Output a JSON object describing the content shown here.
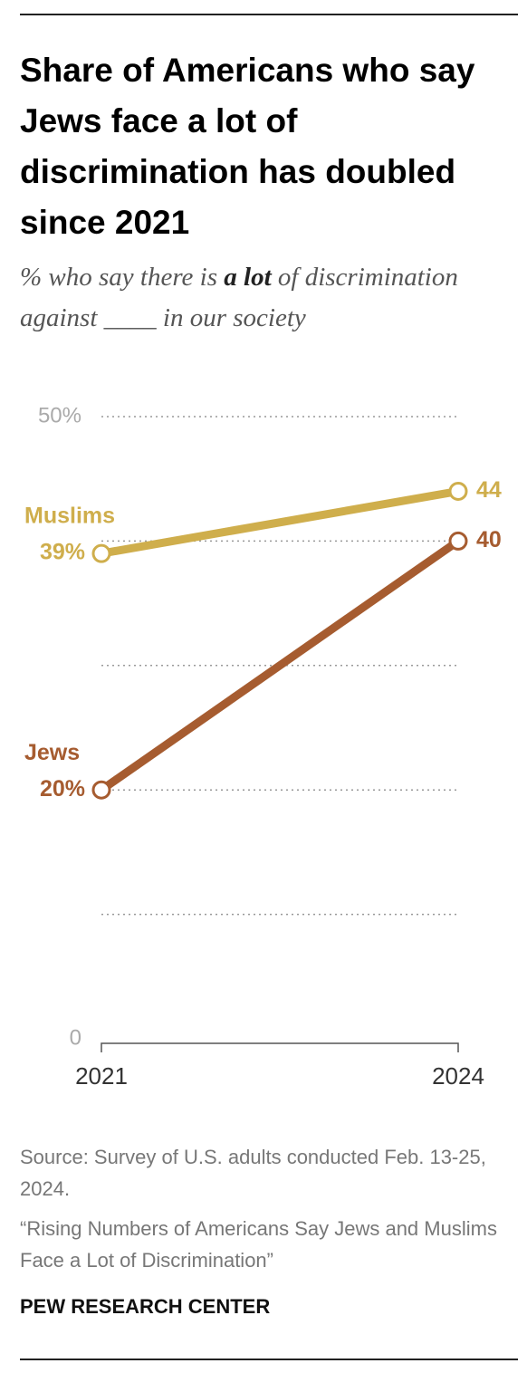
{
  "chart_data": {
    "type": "line",
    "title": "Share of Americans who say Jews face a lot of discrimination has doubled since 2021",
    "subtitle": [
      "% who say there is ",
      "a lot",
      " of discrimination against ____ in our society"
    ],
    "categories": [
      "2021",
      "2024"
    ],
    "series": [
      {
        "name": "Muslims",
        "color": "#cfae4c",
        "values": [
          39,
          44
        ],
        "value_labels": [
          "39%",
          "44"
        ]
      },
      {
        "name": "Jews",
        "color": "#a65c30",
        "values": [
          20,
          40
        ],
        "value_labels": [
          "20%",
          "40"
        ]
      }
    ],
    "ylim": [
      0,
      50
    ],
    "yticks": [
      0,
      {
        "value": 50,
        "label": "50%"
      }
    ],
    "gridlines": [
      10,
      20,
      30,
      40,
      50
    ],
    "source": [
      "Source: Survey of U.S. adults conducted Feb. 13-25, 2024.",
      "“Rising Numbers of Americans Say Jews and Muslims Face a Lot of Discrimination”"
    ],
    "footer": "PEW RESEARCH CENTER"
  }
}
